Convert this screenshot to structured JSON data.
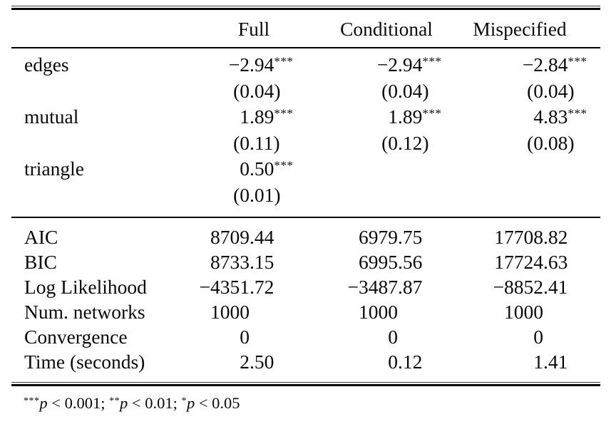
{
  "table": {
    "column_headers": [
      "Full",
      "Conditional",
      "Mispecified"
    ],
    "coefficients": [
      {
        "label": "edges",
        "cells": [
          {
            "v": "−2.94",
            "s": "***"
          },
          {
            "v": "−2.94",
            "s": "***"
          },
          {
            "v": "−2.84",
            "s": "***"
          }
        ]
      },
      {
        "label": "",
        "cells": [
          {
            "v": "(0.04)"
          },
          {
            "v": "(0.04)"
          },
          {
            "v": "(0.04)"
          }
        ]
      },
      {
        "label": "mutual",
        "cells": [
          {
            "v": "1.89",
            "s": "***"
          },
          {
            "v": "1.89",
            "s": "***"
          },
          {
            "v": "4.83",
            "s": "***"
          }
        ]
      },
      {
        "label": "",
        "cells": [
          {
            "v": "(0.11)"
          },
          {
            "v": "(0.12)"
          },
          {
            "v": "(0.08)"
          }
        ]
      },
      {
        "label": "triangle",
        "cells": [
          {
            "v": "0.50",
            "s": "***"
          },
          null,
          null
        ]
      },
      {
        "label": "",
        "cells": [
          {
            "v": "(0.01)"
          },
          null,
          null
        ]
      }
    ],
    "gof": [
      {
        "label": "AIC",
        "cells": [
          {
            "v": "8709.44"
          },
          {
            "v": "6979.75"
          },
          {
            "v": "17708.82"
          }
        ]
      },
      {
        "label": "BIC",
        "cells": [
          {
            "v": "8733.15"
          },
          {
            "v": "6995.56"
          },
          {
            "v": "17724.63"
          }
        ]
      },
      {
        "label": "Log Likelihood",
        "cells": [
          {
            "v": "−4351.72"
          },
          {
            "v": "−3487.87"
          },
          {
            "v": "−8852.41"
          }
        ]
      },
      {
        "label": "Num. networks",
        "cells": [
          {
            "v": "1000"
          },
          {
            "v": "1000"
          },
          {
            "v": "1000"
          }
        ]
      },
      {
        "label": "Convergence",
        "cells": [
          {
            "v": "0"
          },
          {
            "v": "0"
          },
          {
            "v": "0"
          }
        ]
      },
      {
        "label": "Time (seconds)",
        "cells": [
          {
            "v": "2.50"
          },
          {
            "v": "0.12"
          },
          {
            "v": "1.41"
          }
        ]
      }
    ],
    "footnote": {
      "p_symbol": "p",
      "notes": [
        {
          "stars": "***",
          "rest": " < 0.001; "
        },
        {
          "stars": "**",
          "rest": " < 0.01; "
        },
        {
          "stars": "*",
          "rest": " < 0.05"
        }
      ]
    }
  }
}
